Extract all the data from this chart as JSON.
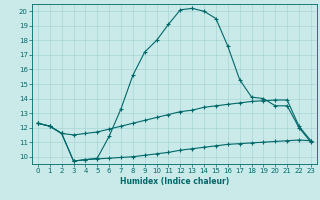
{
  "xlabel": "Humidex (Indice chaleur)",
  "bg_color": "#caeaea",
  "grid_color": "#a8d5d5",
  "line_color": "#006868",
  "xlim": [
    -0.5,
    23.5
  ],
  "ylim": [
    9.5,
    20.5
  ],
  "xticks": [
    0,
    1,
    2,
    3,
    4,
    5,
    6,
    7,
    8,
    9,
    10,
    11,
    12,
    13,
    14,
    15,
    16,
    17,
    18,
    19,
    20,
    21,
    22,
    23
  ],
  "yticks": [
    10,
    11,
    12,
    13,
    14,
    15,
    16,
    17,
    18,
    19,
    20
  ],
  "curve1_x": [
    0,
    1,
    2,
    3,
    4,
    5,
    6,
    7,
    8,
    9,
    10,
    11,
    12,
    13,
    14,
    15,
    16,
    17,
    18,
    19,
    20,
    21,
    22,
    23
  ],
  "curve1_y": [
    12.3,
    12.1,
    11.6,
    9.7,
    9.8,
    9.9,
    11.4,
    13.3,
    15.6,
    17.2,
    18.0,
    19.1,
    20.1,
    20.2,
    20.0,
    19.5,
    17.6,
    15.3,
    14.1,
    14.0,
    13.5,
    13.5,
    12.0,
    11.0
  ],
  "curve2_x": [
    0,
    1,
    2,
    3,
    4,
    5,
    6,
    7,
    8,
    9,
    10,
    11,
    12,
    13,
    14,
    15,
    16,
    17,
    18,
    19,
    20,
    21,
    22,
    23
  ],
  "curve2_y": [
    12.3,
    12.1,
    11.6,
    11.5,
    11.6,
    11.7,
    11.9,
    12.1,
    12.3,
    12.5,
    12.7,
    12.9,
    13.1,
    13.2,
    13.4,
    13.5,
    13.6,
    13.7,
    13.8,
    13.85,
    13.9,
    13.9,
    12.1,
    11.1
  ],
  "curve3_x": [
    0,
    1,
    2,
    3,
    4,
    5,
    6,
    7,
    8,
    9,
    10,
    11,
    12,
    13,
    14,
    15,
    16,
    17,
    18,
    19,
    20,
    21,
    22,
    23
  ],
  "curve3_y": [
    12.3,
    12.1,
    11.6,
    9.7,
    9.8,
    9.85,
    9.9,
    9.95,
    10.0,
    10.1,
    10.2,
    10.3,
    10.45,
    10.55,
    10.65,
    10.75,
    10.85,
    10.9,
    10.95,
    11.0,
    11.05,
    11.1,
    11.15,
    11.1
  ]
}
